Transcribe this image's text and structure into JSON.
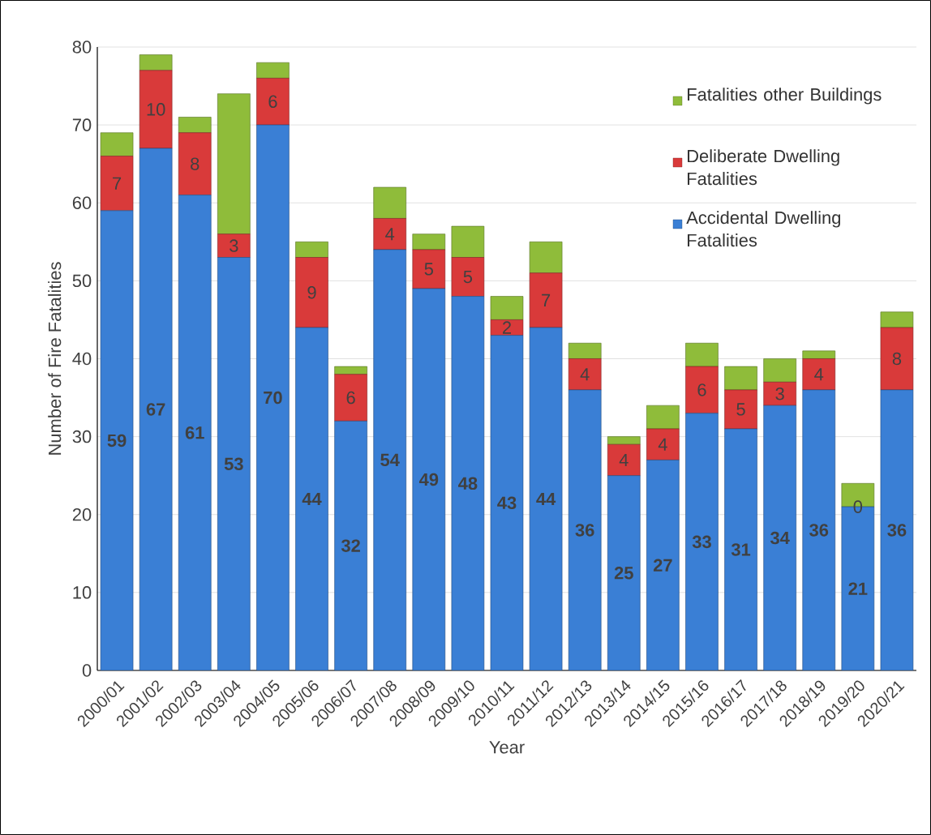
{
  "chart_data": {
    "type": "bar",
    "stacked": true,
    "xlabel": "Year",
    "ylabel": "Number of Fire Fatalities",
    "categories": [
      "2000/01",
      "2001/02",
      "2002/03",
      "2003/04",
      "2004/05",
      "2005/06",
      "2006/07",
      "2007/08",
      "2008/09",
      "2009/10",
      "2010/11",
      "2011/12",
      "2012/13",
      "2013/14",
      "2014/15",
      "2015/16",
      "2016/17",
      "2017/18",
      "2018/19",
      "2019/20",
      "2020/21"
    ],
    "series": [
      {
        "name": "Accidental Dwelling Fatalities",
        "color": "#3a7fd5",
        "values": [
          59,
          67,
          61,
          53,
          70,
          44,
          32,
          54,
          49,
          48,
          43,
          44,
          36,
          25,
          27,
          33,
          31,
          34,
          36,
          21,
          36
        ],
        "value_labels": [
          "59",
          "67",
          "61",
          "53",
          "70",
          "44",
          "32",
          "54",
          "49",
          "48",
          "43",
          "44",
          "36",
          "25",
          "27",
          "33",
          "31",
          "34",
          "36",
          "21",
          "36"
        ]
      },
      {
        "name": "Deliberate Dwelling Fatalities",
        "color": "#d93a3a",
        "values": [
          7,
          10,
          8,
          3,
          6,
          9,
          6,
          4,
          5,
          5,
          2,
          7,
          4,
          4,
          4,
          6,
          5,
          3,
          4,
          0,
          8
        ],
        "value_labels": [
          "7",
          "10",
          "8",
          "3",
          "6",
          "9",
          "6",
          "4",
          "5",
          "5",
          "2",
          "7",
          "4",
          "4",
          "4",
          "6",
          "5",
          "3",
          "4",
          "0",
          "8"
        ]
      },
      {
        "name": "Fatalities other Buildings",
        "color": "#8fbc3a",
        "values": [
          3,
          2,
          2,
          18,
          2,
          2,
          1,
          4,
          2,
          4,
          3,
          4,
          2,
          1,
          3,
          3,
          3,
          3,
          1,
          3,
          2
        ]
      }
    ],
    "ylim": [
      0,
      80
    ],
    "yticks": [
      0,
      10,
      20,
      30,
      40,
      50,
      60,
      70,
      80
    ],
    "grid": "y",
    "legend": "top right"
  }
}
